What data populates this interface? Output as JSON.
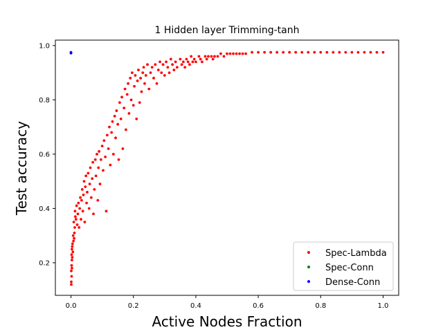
{
  "chart_data": {
    "type": "scatter",
    "title": "1 Hidden layer Trimming-tanh",
    "xlabel": "Active Nodes Fraction",
    "ylabel": "Test accuracy",
    "xlim": [
      -0.05,
      1.05
    ],
    "ylim": [
      0.08,
      1.02
    ],
    "xticks": [
      0.0,
      0.2,
      0.4,
      0.6,
      0.8,
      1.0
    ],
    "xtick_labels": [
      "0.0",
      "0.2",
      "0.4",
      "0.6",
      "0.8",
      "1.0"
    ],
    "yticks": [
      0.2,
      0.4,
      0.6,
      0.8,
      1.0
    ],
    "ytick_labels": [
      "0.2",
      "0.4",
      "0.6",
      "0.8",
      "1.0"
    ],
    "grid": false,
    "legend_position": "lower-right",
    "series": [
      {
        "name": "Spec-Lambda",
        "color": "#ff0000",
        "points": [
          [
            0.001,
            0.12
          ],
          [
            0.001,
            0.13
          ],
          [
            0.002,
            0.15
          ],
          [
            0.001,
            0.17
          ],
          [
            0.002,
            0.19
          ],
          [
            0.003,
            0.21
          ],
          [
            0.002,
            0.23
          ],
          [
            0.003,
            0.25
          ],
          [
            0.004,
            0.26
          ],
          [
            0.005,
            0.27
          ],
          [
            0.004,
            0.22
          ],
          [
            0.003,
            0.18
          ],
          [
            0.006,
            0.24
          ],
          [
            0.008,
            0.28
          ],
          [
            0.007,
            0.3
          ],
          [
            0.01,
            0.29
          ],
          [
            0.012,
            0.33
          ],
          [
            0.009,
            0.35
          ],
          [
            0.011,
            0.31
          ],
          [
            0.014,
            0.37
          ],
          [
            0.013,
            0.39
          ],
          [
            0.016,
            0.36
          ],
          [
            0.018,
            0.41
          ],
          [
            0.02,
            0.34
          ],
          [
            0.022,
            0.38
          ],
          [
            0.024,
            0.42
          ],
          [
            0.026,
            0.33
          ],
          [
            0.028,
            0.4
          ],
          [
            0.03,
            0.44
          ],
          [
            0.032,
            0.36
          ],
          [
            0.034,
            0.43
          ],
          [
            0.036,
            0.47
          ],
          [
            0.038,
            0.39
          ],
          [
            0.04,
            0.45
          ],
          [
            0.042,
            0.5
          ],
          [
            0.044,
            0.35
          ],
          [
            0.046,
            0.48
          ],
          [
            0.048,
            0.52
          ],
          [
            0.05,
            0.42
          ],
          [
            0.052,
            0.46
          ],
          [
            0.055,
            0.53
          ],
          [
            0.058,
            0.4
          ],
          [
            0.06,
            0.49
          ],
          [
            0.062,
            0.55
          ],
          [
            0.065,
            0.44
          ],
          [
            0.068,
            0.51
          ],
          [
            0.07,
            0.57
          ],
          [
            0.072,
            0.38
          ],
          [
            0.075,
            0.47
          ],
          [
            0.078,
            0.58
          ],
          [
            0.08,
            0.52
          ],
          [
            0.083,
            0.6
          ],
          [
            0.086,
            0.43
          ],
          [
            0.088,
            0.55
          ],
          [
            0.09,
            0.61
          ],
          [
            0.093,
            0.49
          ],
          [
            0.096,
            0.58
          ],
          [
            0.1,
            0.63
          ],
          [
            0.103,
            0.54
          ],
          [
            0.106,
            0.65
          ],
          [
            0.11,
            0.59
          ],
          [
            0.113,
            0.39
          ],
          [
            0.116,
            0.67
          ],
          [
            0.12,
            0.62
          ],
          [
            0.123,
            0.7
          ],
          [
            0.126,
            0.56
          ],
          [
            0.13,
            0.68
          ],
          [
            0.133,
            0.72
          ],
          [
            0.136,
            0.6
          ],
          [
            0.14,
            0.74
          ],
          [
            0.143,
            0.66
          ],
          [
            0.146,
            0.76
          ],
          [
            0.15,
            0.71
          ],
          [
            0.153,
            0.58
          ],
          [
            0.156,
            0.79
          ],
          [
            0.16,
            0.73
          ],
          [
            0.163,
            0.81
          ],
          [
            0.166,
            0.62
          ],
          [
            0.17,
            0.77
          ],
          [
            0.173,
            0.84
          ],
          [
            0.176,
            0.69
          ],
          [
            0.18,
            0.82
          ],
          [
            0.183,
            0.86
          ],
          [
            0.186,
            0.75
          ],
          [
            0.19,
            0.88
          ],
          [
            0.193,
            0.8
          ],
          [
            0.196,
            0.9
          ],
          [
            0.2,
            0.78
          ],
          [
            0.203,
            0.85
          ],
          [
            0.206,
            0.89
          ],
          [
            0.21,
            0.73
          ],
          [
            0.213,
            0.87
          ],
          [
            0.216,
            0.91
          ],
          [
            0.22,
            0.79
          ],
          [
            0.223,
            0.88
          ],
          [
            0.226,
            0.83
          ],
          [
            0.23,
            0.9
          ],
          [
            0.233,
            0.92
          ],
          [
            0.236,
            0.86
          ],
          [
            0.24,
            0.89
          ],
          [
            0.245,
            0.93
          ],
          [
            0.25,
            0.84
          ],
          [
            0.255,
            0.9
          ],
          [
            0.26,
            0.92
          ],
          [
            0.265,
            0.88
          ],
          [
            0.27,
            0.93
          ],
          [
            0.275,
            0.86
          ],
          [
            0.28,
            0.91
          ],
          [
            0.285,
            0.94
          ],
          [
            0.29,
            0.9
          ],
          [
            0.295,
            0.93
          ],
          [
            0.3,
            0.89
          ],
          [
            0.305,
            0.94
          ],
          [
            0.31,
            0.92
          ],
          [
            0.315,
            0.9
          ],
          [
            0.32,
            0.95
          ],
          [
            0.325,
            0.93
          ],
          [
            0.33,
            0.91
          ],
          [
            0.335,
            0.94
          ],
          [
            0.34,
            0.92
          ],
          [
            0.35,
            0.95
          ],
          [
            0.355,
            0.93
          ],
          [
            0.36,
            0.94
          ],
          [
            0.365,
            0.92
          ],
          [
            0.37,
            0.95
          ],
          [
            0.375,
            0.94
          ],
          [
            0.38,
            0.93
          ],
          [
            0.385,
            0.96
          ],
          [
            0.39,
            0.94
          ],
          [
            0.395,
            0.95
          ],
          [
            0.4,
            0.94
          ],
          [
            0.41,
            0.96
          ],
          [
            0.415,
            0.95
          ],
          [
            0.42,
            0.94
          ],
          [
            0.43,
            0.96
          ],
          [
            0.435,
            0.95
          ],
          [
            0.44,
            0.96
          ],
          [
            0.45,
            0.96
          ],
          [
            0.455,
            0.95
          ],
          [
            0.46,
            0.96
          ],
          [
            0.47,
            0.96
          ],
          [
            0.48,
            0.97
          ],
          [
            0.49,
            0.96
          ],
          [
            0.5,
            0.97
          ],
          [
            0.51,
            0.97
          ],
          [
            0.52,
            0.97
          ],
          [
            0.53,
            0.97
          ],
          [
            0.54,
            0.97
          ],
          [
            0.55,
            0.97
          ],
          [
            0.56,
            0.97
          ],
          [
            0.58,
            0.975
          ],
          [
            0.6,
            0.975
          ],
          [
            0.62,
            0.975
          ],
          [
            0.64,
            0.975
          ],
          [
            0.66,
            0.975
          ],
          [
            0.68,
            0.975
          ],
          [
            0.7,
            0.975
          ],
          [
            0.72,
            0.975
          ],
          [
            0.74,
            0.975
          ],
          [
            0.76,
            0.975
          ],
          [
            0.78,
            0.975
          ],
          [
            0.8,
            0.975
          ],
          [
            0.82,
            0.975
          ],
          [
            0.84,
            0.975
          ],
          [
            0.86,
            0.975
          ],
          [
            0.88,
            0.975
          ],
          [
            0.9,
            0.975
          ],
          [
            0.92,
            0.975
          ],
          [
            0.94,
            0.975
          ],
          [
            0.96,
            0.975
          ],
          [
            0.98,
            0.975
          ],
          [
            1.0,
            0.975
          ]
        ]
      },
      {
        "name": "Spec-Conn",
        "color": "#008000",
        "points": []
      },
      {
        "name": "Dense-Conn",
        "color": "#0000ff",
        "points": [
          [
            0.0,
            0.975
          ],
          [
            0.0,
            0.972
          ]
        ]
      }
    ]
  }
}
